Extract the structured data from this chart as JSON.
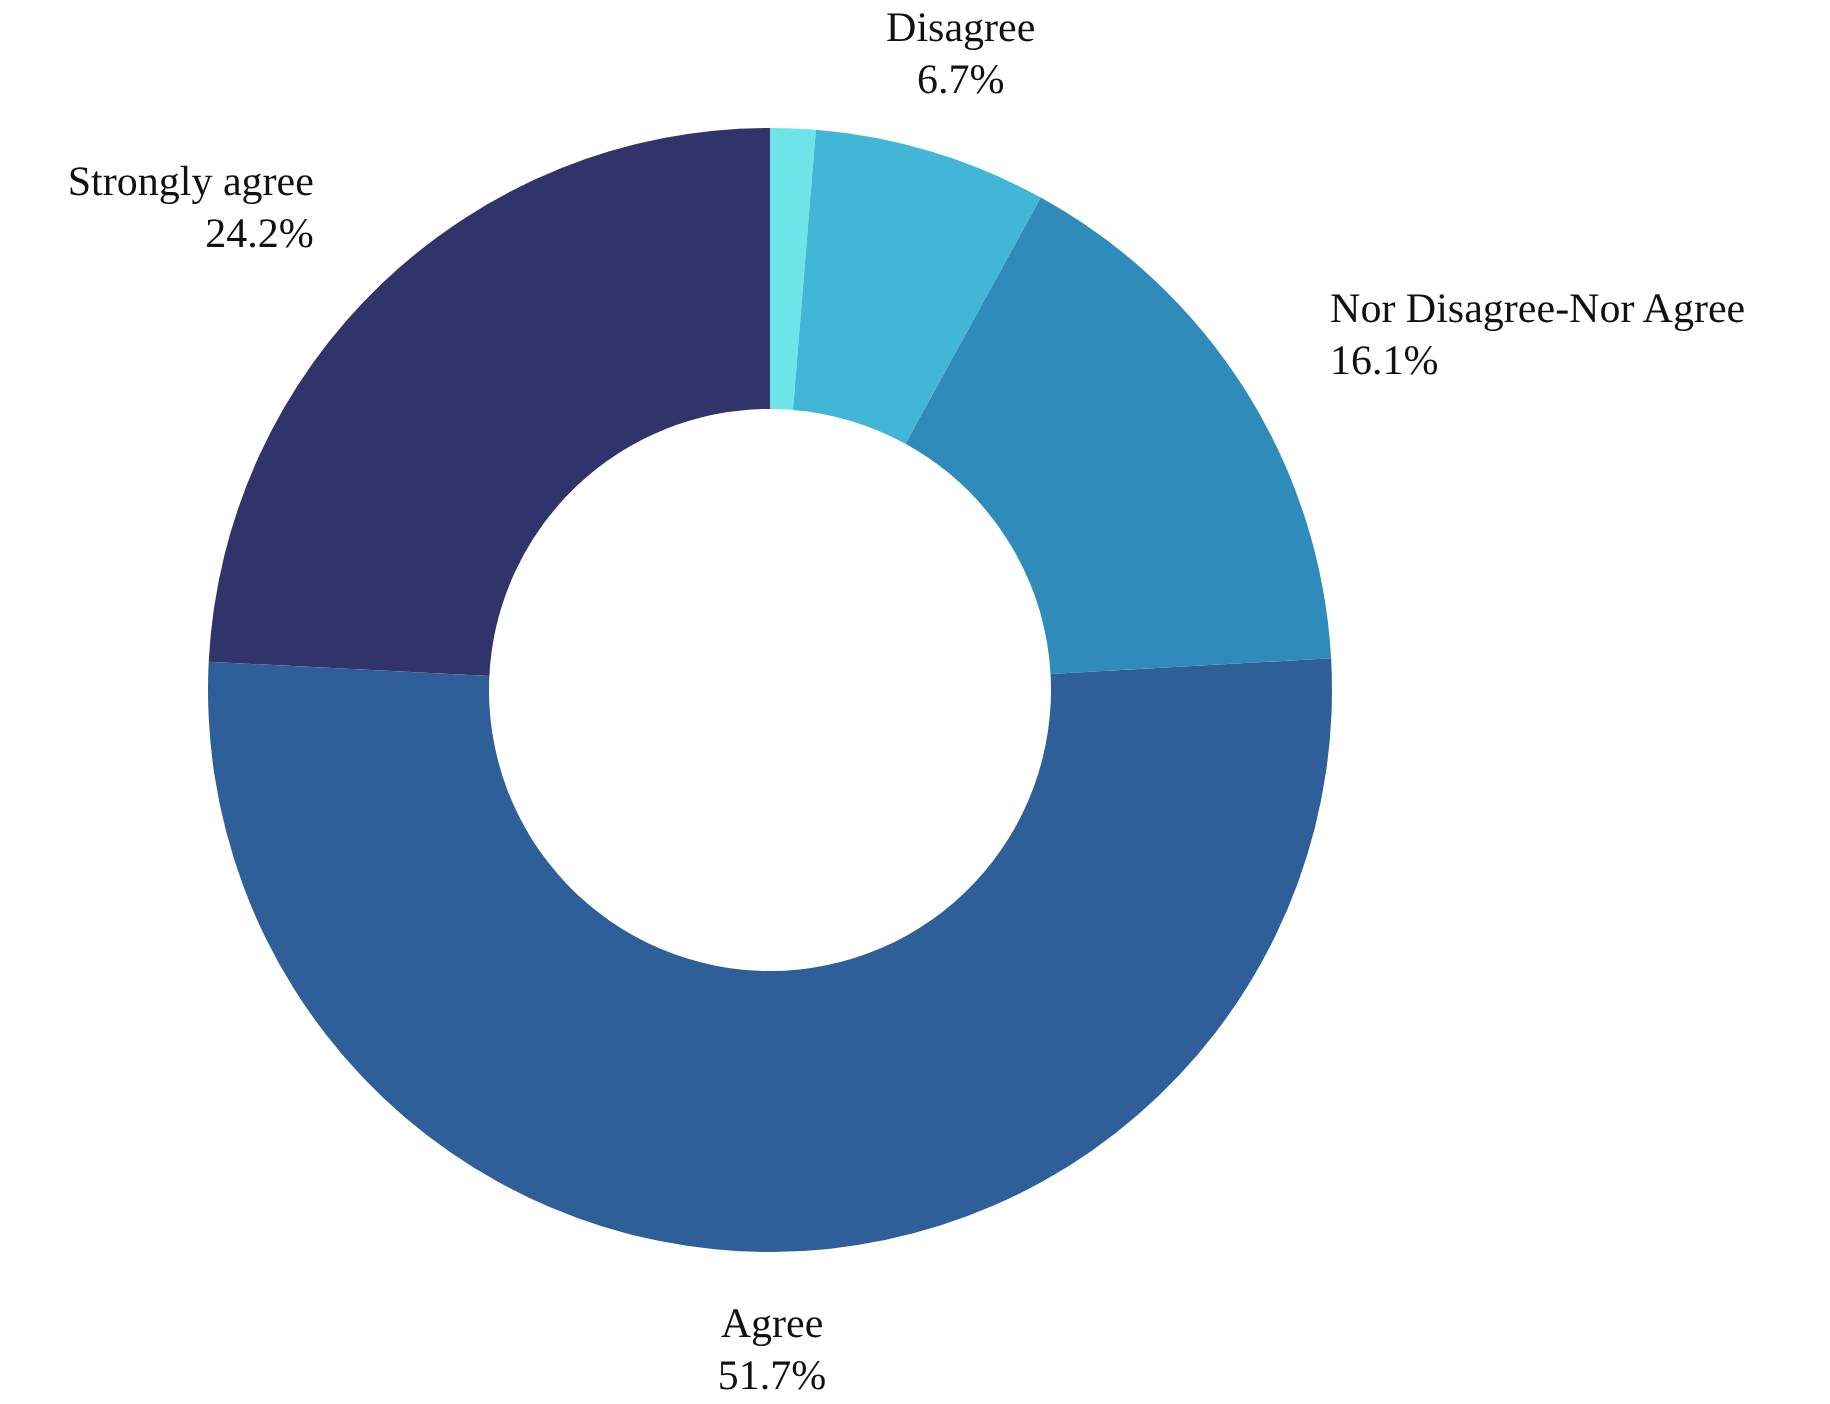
{
  "chart_data": {
    "type": "donut",
    "categories": [
      null,
      "Disagree",
      "Nor Disagree-Nor Agree",
      "Agree",
      "Strongly agree"
    ],
    "values": [
      1.3,
      6.7,
      16.1,
      51.7,
      24.2
    ],
    "colors": [
      "#6de4e8",
      "#42b6d7",
      "#2e8bba",
      "#2e5f98",
      "#30346a"
    ],
    "value_labels": [
      null,
      "6.7%",
      "16.1%",
      "51.7%",
      "24.2%"
    ],
    "legend": false
  }
}
